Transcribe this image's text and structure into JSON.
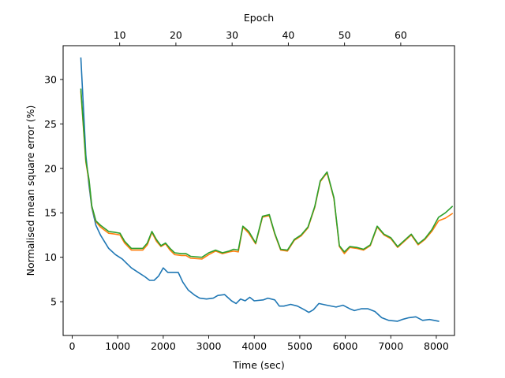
{
  "chart_data": {
    "type": "line",
    "title": "",
    "xlabel": "Time (sec)",
    "ylabel": "Normalised mean square error (%)",
    "x2label": "Epoch",
    "xlim": [
      -200,
      8400
    ],
    "ylim": [
      1.2,
      33.8
    ],
    "x2lim": [
      -0.06,
      69.56
    ],
    "xticks": [
      0,
      1000,
      2000,
      3000,
      4000,
      5000,
      6000,
      7000,
      8000
    ],
    "yticks": [
      5,
      10,
      15,
      20,
      25,
      30
    ],
    "x2ticks": [
      10,
      20,
      30,
      40,
      50,
      60
    ],
    "grid": false,
    "legend": "none",
    "series": [
      {
        "color": "#1f77b4",
        "points": [
          [
            190,
            32.4
          ],
          [
            300,
            21.5
          ],
          [
            370,
            18.0
          ],
          [
            430,
            15.6
          ],
          [
            520,
            13.6
          ],
          [
            620,
            12.5
          ],
          [
            800,
            11.0
          ],
          [
            950,
            10.3
          ],
          [
            1100,
            9.8
          ],
          [
            1200,
            9.3
          ],
          [
            1300,
            8.8
          ],
          [
            1450,
            8.3
          ],
          [
            1600,
            7.8
          ],
          [
            1700,
            7.4
          ],
          [
            1800,
            7.4
          ],
          [
            1900,
            7.9
          ],
          [
            2000,
            8.8
          ],
          [
            2100,
            8.3
          ],
          [
            2250,
            8.3
          ],
          [
            2330,
            8.3
          ],
          [
            2430,
            7.2
          ],
          [
            2550,
            6.3
          ],
          [
            2700,
            5.7
          ],
          [
            2800,
            5.4
          ],
          [
            2950,
            5.3
          ],
          [
            3100,
            5.4
          ],
          [
            3200,
            5.7
          ],
          [
            3350,
            5.8
          ],
          [
            3500,
            5.1
          ],
          [
            3600,
            4.8
          ],
          [
            3700,
            5.3
          ],
          [
            3800,
            5.1
          ],
          [
            3900,
            5.5
          ],
          [
            4000,
            5.1
          ],
          [
            4200,
            5.2
          ],
          [
            4300,
            5.4
          ],
          [
            4450,
            5.2
          ],
          [
            4550,
            4.5
          ],
          [
            4650,
            4.5
          ],
          [
            4800,
            4.7
          ],
          [
            4950,
            4.5
          ],
          [
            5100,
            4.1
          ],
          [
            5200,
            3.8
          ],
          [
            5300,
            4.1
          ],
          [
            5420,
            4.8
          ],
          [
            5600,
            4.6
          ],
          [
            5800,
            4.4
          ],
          [
            5950,
            4.6
          ],
          [
            6100,
            4.2
          ],
          [
            6200,
            4.0
          ],
          [
            6350,
            4.2
          ],
          [
            6500,
            4.2
          ],
          [
            6650,
            3.9
          ],
          [
            6800,
            3.2
          ],
          [
            6950,
            2.9
          ],
          [
            7150,
            2.8
          ],
          [
            7250,
            3.0
          ],
          [
            7400,
            3.2
          ],
          [
            7550,
            3.3
          ],
          [
            7700,
            2.9
          ],
          [
            7850,
            3.0
          ],
          [
            8050,
            2.8
          ]
        ]
      },
      {
        "color": "#ff7f0e",
        "points": [
          [
            190,
            28.6
          ],
          [
            300,
            20.7
          ],
          [
            370,
            18.5
          ],
          [
            430,
            15.7
          ],
          [
            520,
            14.0
          ],
          [
            620,
            13.4
          ],
          [
            800,
            12.7
          ],
          [
            950,
            12.6
          ],
          [
            1050,
            12.5
          ],
          [
            1150,
            11.6
          ],
          [
            1300,
            10.8
          ],
          [
            1450,
            10.8
          ],
          [
            1550,
            10.8
          ],
          [
            1650,
            11.4
          ],
          [
            1750,
            12.8
          ],
          [
            1850,
            11.8
          ],
          [
            1950,
            11.2
          ],
          [
            2050,
            11.5
          ],
          [
            2150,
            10.8
          ],
          [
            2250,
            10.3
          ],
          [
            2400,
            10.2
          ],
          [
            2500,
            10.2
          ],
          [
            2600,
            9.9
          ],
          [
            2850,
            9.8
          ],
          [
            3000,
            10.3
          ],
          [
            3150,
            10.7
          ],
          [
            3300,
            10.4
          ],
          [
            3450,
            10.6
          ],
          [
            3550,
            10.7
          ],
          [
            3650,
            10.6
          ],
          [
            3750,
            13.4
          ],
          [
            3880,
            12.7
          ],
          [
            4030,
            11.5
          ],
          [
            4180,
            14.5
          ],
          [
            4330,
            14.7
          ],
          [
            4450,
            12.6
          ],
          [
            4580,
            10.8
          ],
          [
            4730,
            10.7
          ],
          [
            4880,
            11.9
          ],
          [
            5030,
            12.4
          ],
          [
            5180,
            13.3
          ],
          [
            5330,
            15.6
          ],
          [
            5450,
            18.5
          ],
          [
            5600,
            19.5
          ],
          [
            5750,
            16.6
          ],
          [
            5870,
            11.2
          ],
          [
            5980,
            10.4
          ],
          [
            6100,
            11.1
          ],
          [
            6250,
            11.0
          ],
          [
            6400,
            10.8
          ],
          [
            6550,
            11.3
          ],
          [
            6700,
            13.4
          ],
          [
            6850,
            12.5
          ],
          [
            7000,
            12.1
          ],
          [
            7150,
            11.1
          ],
          [
            7300,
            11.8
          ],
          [
            7450,
            12.5
          ],
          [
            7600,
            11.4
          ],
          [
            7750,
            12.0
          ],
          [
            7900,
            12.9
          ],
          [
            8050,
            14.1
          ],
          [
            8200,
            14.4
          ],
          [
            8350,
            14.9
          ]
        ]
      },
      {
        "color": "#2ca02c",
        "points": [
          [
            190,
            28.9
          ],
          [
            300,
            20.9
          ],
          [
            370,
            18.7
          ],
          [
            430,
            15.8
          ],
          [
            520,
            14.1
          ],
          [
            620,
            13.6
          ],
          [
            800,
            12.9
          ],
          [
            950,
            12.8
          ],
          [
            1050,
            12.7
          ],
          [
            1150,
            11.8
          ],
          [
            1300,
            11.0
          ],
          [
            1450,
            11.0
          ],
          [
            1550,
            11.0
          ],
          [
            1650,
            11.6
          ],
          [
            1750,
            12.9
          ],
          [
            1850,
            12.0
          ],
          [
            1950,
            11.3
          ],
          [
            2050,
            11.6
          ],
          [
            2150,
            11.0
          ],
          [
            2250,
            10.5
          ],
          [
            2400,
            10.4
          ],
          [
            2500,
            10.4
          ],
          [
            2600,
            10.1
          ],
          [
            2850,
            10.0
          ],
          [
            3000,
            10.5
          ],
          [
            3150,
            10.8
          ],
          [
            3300,
            10.5
          ],
          [
            3450,
            10.7
          ],
          [
            3550,
            10.9
          ],
          [
            3650,
            10.8
          ],
          [
            3750,
            13.5
          ],
          [
            3880,
            12.9
          ],
          [
            4030,
            11.6
          ],
          [
            4180,
            14.6
          ],
          [
            4330,
            14.8
          ],
          [
            4450,
            12.7
          ],
          [
            4580,
            10.9
          ],
          [
            4730,
            10.8
          ],
          [
            4880,
            12.0
          ],
          [
            5030,
            12.5
          ],
          [
            5180,
            13.4
          ],
          [
            5330,
            15.7
          ],
          [
            5450,
            18.6
          ],
          [
            5600,
            19.6
          ],
          [
            5750,
            16.7
          ],
          [
            5870,
            11.3
          ],
          [
            5980,
            10.6
          ],
          [
            6100,
            11.2
          ],
          [
            6250,
            11.1
          ],
          [
            6400,
            10.9
          ],
          [
            6550,
            11.4
          ],
          [
            6700,
            13.5
          ],
          [
            6850,
            12.6
          ],
          [
            7000,
            12.2
          ],
          [
            7150,
            11.2
          ],
          [
            7300,
            11.9
          ],
          [
            7450,
            12.6
          ],
          [
            7600,
            11.5
          ],
          [
            7750,
            12.1
          ],
          [
            7900,
            13.1
          ],
          [
            8050,
            14.5
          ],
          [
            8200,
            15.0
          ],
          [
            8350,
            15.7
          ]
        ]
      }
    ]
  }
}
